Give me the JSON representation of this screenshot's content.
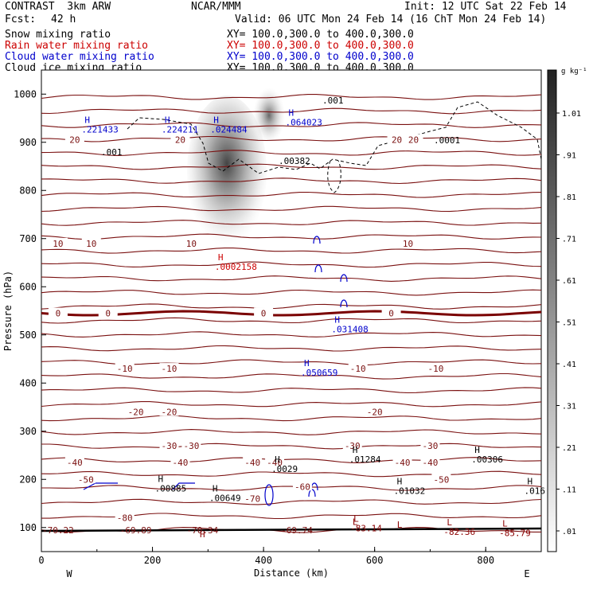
{
  "header": {
    "title": "CONTRAST  3km ARW",
    "org": "NCAR/MMM",
    "init": "Init: 12 UTC Sat 22 Feb 14",
    "fcst_label": "Fcst:",
    "fcst_value": "42 h",
    "valid": "Valid: 06 UTC Mon 24 Feb 14 (16 ChT Mon 24 Feb 14)",
    "fields": [
      {
        "name": "Snow mixing ratio",
        "xy": "XY= 100.0,300.0 to 400.0,300.0",
        "color": "#000000"
      },
      {
        "name": "Rain water mixing ratio",
        "xy": "XY= 100.0,300.0 to 400.0,300.0",
        "color": "#cc0000"
      },
      {
        "name": "Cloud water mixing ratio",
        "xy": "XY= 100.0,300.0 to 400.0,300.0",
        "color": "#0000cc"
      },
      {
        "name": "Cloud ice mixing ratio",
        "xy": "XY= 100.0,300.0 to 400.0,300.0",
        "color": "#000000"
      }
    ]
  },
  "chart_data": {
    "type": "contour cross-section",
    "xlabel": "Distance (km)",
    "ylabel": "Pressure (hPa)",
    "xlim": [
      0,
      900
    ],
    "ylim": [
      1050,
      50
    ],
    "xticks": [
      0,
      200,
      400,
      600,
      800
    ],
    "yticks": [
      100,
      200,
      300,
      400,
      500,
      600,
      700,
      800,
      900,
      1000
    ],
    "x_end_labels": {
      "left": "W",
      "right": "E"
    },
    "colorbar": {
      "unit": "g kg⁻¹",
      "ticks": [
        "1.01",
        ".91",
        ".81",
        ".71",
        ".61",
        ".51",
        ".41",
        ".31",
        ".21",
        ".11",
        ".01"
      ]
    },
    "temperature_contours": [
      {
        "label": "-80",
        "pressure": 120
      },
      {
        "label": "-70",
        "pressure": 160
      },
      {
        "label": "-60",
        "pressure": 185
      },
      {
        "label": "-50",
        "pressure": 200
      },
      {
        "label": "-40",
        "pressure": 235
      },
      {
        "label": "-30",
        "pressure": 270
      },
      {
        "label": "-20",
        "pressure": 340
      },
      {
        "label": "-10",
        "pressure": 430
      },
      {
        "label": "0",
        "pressure": 545
      },
      {
        "label": "10",
        "pressure": 690
      },
      {
        "label": "20",
        "pressure": 905
      }
    ],
    "extrema": [
      {
        "type": "H",
        "value": "",
        "x": 290,
        "p": 80,
        "color": "#8b0000"
      },
      {
        "type": "L",
        "value": "",
        "x": 565,
        "p": 105,
        "color": "#8b0000"
      },
      {
        "type": "L",
        "value": "",
        "x": 645,
        "p": 100,
        "color": "#8b0000"
      },
      {
        "type": "L",
        "value": "-83.14",
        "x": 562,
        "p": 102,
        "color": "#8b0000"
      },
      {
        "type": "L",
        "value": "-82.36",
        "x": 730,
        "p": 95,
        "color": "#8b0000"
      },
      {
        "type": "L",
        "value": "-85.79",
        "x": 830,
        "p": 92,
        "color": "#8b0000"
      },
      {
        "type": "H",
        "value": ".00885",
        "x": 210,
        "p": 185,
        "color": "#000000"
      },
      {
        "type": "H",
        "value": ".00649",
        "x": 308,
        "p": 165,
        "color": "#000000"
      },
      {
        "type": "H",
        "value": ".0029",
        "x": 420,
        "p": 225,
        "color": "#000000"
      },
      {
        "type": "H",
        "value": ".01284",
        "x": 560,
        "p": 245,
        "color": "#000000"
      },
      {
        "type": "H",
        "value": ".01032",
        "x": 640,
        "p": 180,
        "color": "#000000"
      },
      {
        "type": "H",
        "value": ".00306",
        "x": 780,
        "p": 245,
        "color": "#000000"
      },
      {
        "type": "H",
        "value": ".016",
        "x": 875,
        "p": 180,
        "color": "#000000"
      },
      {
        "type": "H",
        "value": ".050659",
        "x": 473,
        "p": 425,
        "color": "#0000cc"
      },
      {
        "type": "H",
        "value": ".031408",
        "x": 528,
        "p": 515,
        "color": "#0000cc"
      },
      {
        "type": "H",
        "value": ".0002158",
        "x": 318,
        "p": 645,
        "color": "#cc0000"
      },
      {
        "type": "H",
        "value": ".221433",
        "x": 78,
        "p": 930,
        "color": "#0000cc"
      },
      {
        "type": "H",
        "value": ".224211",
        "x": 222,
        "p": 930,
        "color": "#0000cc"
      },
      {
        "type": "H",
        "value": ".024484",
        "x": 310,
        "p": 930,
        "color": "#0000cc"
      },
      {
        "type": "H",
        "value": ".064023",
        "x": 445,
        "p": 945,
        "color": "#0000cc"
      }
    ],
    "top_values": [
      "-70.22",
      "-69.89",
      "-70.34",
      "-69.74"
    ],
    "ice_values": [
      ".001",
      ".001",
      ".00382",
      ".0001"
    ]
  }
}
